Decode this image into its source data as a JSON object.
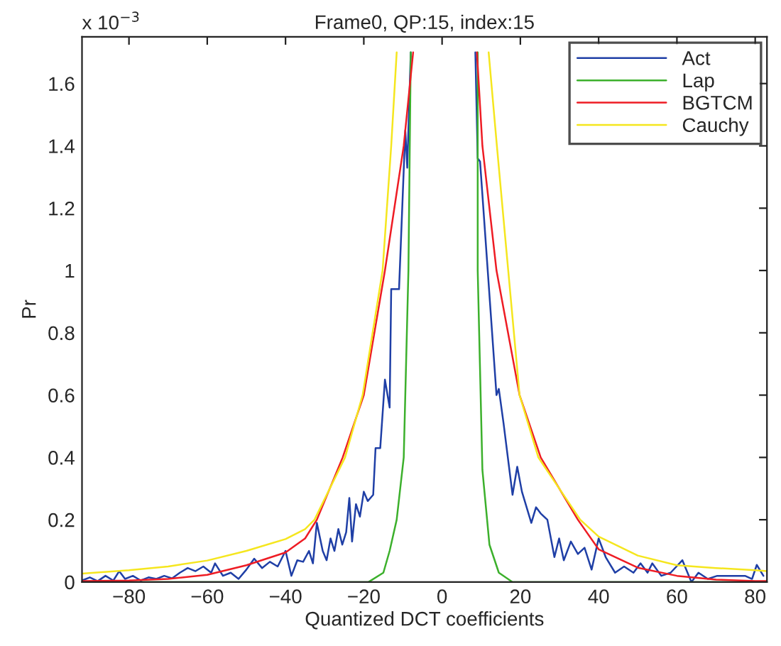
{
  "chart_data": {
    "type": "line",
    "title": "Frame0, QP:15, index:15",
    "xlabel": "Quantized DCT coefficients",
    "ylabel": "Pr",
    "annotations": [
      "x 10$^{−3}$"
    ],
    "xlim": [
      -92,
      83
    ],
    "xticks": [
      -80,
      -60,
      -40,
      -20,
      0,
      20,
      40,
      60,
      80
    ],
    "ylim": [
      0,
      1.75
    ],
    "yticks": [
      0,
      0.2,
      0.4,
      0.6,
      0.8,
      1,
      1.2,
      1.4,
      1.6
    ],
    "grid": false,
    "legend": "top right",
    "line_style": "solid",
    "marker": "none",
    "series": [
      {
        "name": "Act",
        "color": "#1f3fa6",
        "x": [
          -92,
          -90,
          -88,
          -86,
          -84,
          -82.5,
          -81,
          -79,
          -77,
          -75,
          -73,
          -71,
          -69,
          -67,
          -65,
          -63,
          -61,
          -59,
          -58,
          -56,
          -54,
          -52,
          -50,
          -48,
          -46,
          -44,
          -42,
          -40,
          -38.5,
          -37,
          -35.5,
          -34,
          -33,
          -32,
          -30.5,
          -29.5,
          -28.5,
          -27.5,
          -26.5,
          -25.5,
          -24.5,
          -23.7,
          -23,
          -22,
          -21,
          -20,
          -19,
          -17.6,
          -17,
          -15.8,
          -14.6,
          -13.4,
          -13,
          -11,
          -9.4,
          -8.9,
          -8,
          0,
          8.5,
          9.1,
          9.7,
          13.9,
          14.5,
          15.7,
          18,
          19.2,
          20.4,
          22.8,
          24,
          25.2,
          26.9,
          28.7,
          29.9,
          31.1,
          32.9,
          34.7,
          36.4,
          38.2,
          40,
          41.8,
          44.2,
          46.5,
          48.9,
          50.7,
          52.5,
          53.7,
          56,
          58.4,
          61.4,
          63.7,
          65.5,
          67.9,
          70.3,
          72.6,
          77.4,
          79.2,
          80.4,
          82.1
        ],
        "values": [
          0.005,
          0.015,
          0.003,
          0.02,
          0.005,
          0.035,
          0.01,
          0.02,
          0.005,
          0.015,
          0.01,
          0.02,
          0.012,
          0.03,
          0.045,
          0.035,
          0.05,
          0.03,
          0.06,
          0.02,
          0.03,
          0.01,
          0.04,
          0.075,
          0.045,
          0.065,
          0.05,
          0.1,
          0.02,
          0.07,
          0.065,
          0.1,
          0.06,
          0.19,
          0.1,
          0.07,
          0.14,
          0.1,
          0.17,
          0.12,
          0.16,
          0.27,
          0.13,
          0.25,
          0.21,
          0.29,
          0.26,
          0.28,
          0.43,
          0.43,
          0.65,
          0.56,
          0.94,
          0.94,
          1.45,
          1.33,
          1.7,
          null,
          1.7,
          1.36,
          1.35,
          0.6,
          0.62,
          0.51,
          0.28,
          0.37,
          0.29,
          0.19,
          0.24,
          0.22,
          0.2,
          0.08,
          0.14,
          0.07,
          0.13,
          0.09,
          0.11,
          0.04,
          0.14,
          0.08,
          0.03,
          0.05,
          0.03,
          0.06,
          0.03,
          0.06,
          0.02,
          0.03,
          0.07,
          0,
          0.03,
          0.01,
          0.02,
          0.02,
          0.02,
          0.01,
          0.055,
          0.02
        ]
      },
      {
        "name": "Lap",
        "color": "#3cb02c",
        "x": [
          -92,
          -18.8,
          -15,
          -13.4,
          -11.6,
          -9.8,
          -8.6,
          -8,
          0,
          9.1,
          9.1,
          10.3,
          12.1,
          14.5,
          18,
          83
        ],
        "values": [
          0,
          0,
          0.03,
          0.1,
          0.2,
          0.4,
          1.0,
          1.7,
          null,
          1.7,
          1.0,
          0.36,
          0.12,
          0.03,
          0,
          0
        ]
      },
      {
        "name": "BGTCM",
        "color": "#ee1c24",
        "x": [
          -92,
          -80,
          -70,
          -60,
          -50,
          -40,
          -35,
          -32,
          -25.4,
          -20,
          -14.6,
          -9.8,
          -7.4,
          0,
          8.9,
          10.3,
          13.9,
          19.8,
          25.2,
          34.7,
          40,
          50,
          60,
          70,
          80,
          83
        ],
        "values": [
          0.003,
          0.005,
          0.01,
          0.023,
          0.054,
          0.095,
          0.14,
          0.2,
          0.4,
          0.6,
          1.0,
          1.4,
          1.7,
          null,
          1.7,
          1.4,
          1.0,
          0.6,
          0.4,
          0.2,
          0.105,
          0.046,
          0.02,
          0.008,
          0.003,
          0.003
        ]
      },
      {
        "name": "Cauchy",
        "color": "#f5e61e",
        "x": [
          -92,
          -80,
          -70,
          -60,
          -50,
          -40,
          -35,
          -32.6,
          -24.8,
          -20.3,
          -15.2,
          -13,
          -11.6,
          0,
          11.9,
          14,
          16.9,
          19.8,
          24.6,
          35.3,
          40,
          50,
          60,
          70,
          80,
          83
        ],
        "values": [
          0.027,
          0.038,
          0.05,
          0.069,
          0.1,
          0.138,
          0.17,
          0.2,
          0.4,
          0.6,
          1.0,
          1.4,
          1.7,
          null,
          1.7,
          1.4,
          1.0,
          0.6,
          0.4,
          0.2,
          0.146,
          0.085,
          0.054,
          0.045,
          0.038,
          0.035
        ]
      }
    ]
  }
}
